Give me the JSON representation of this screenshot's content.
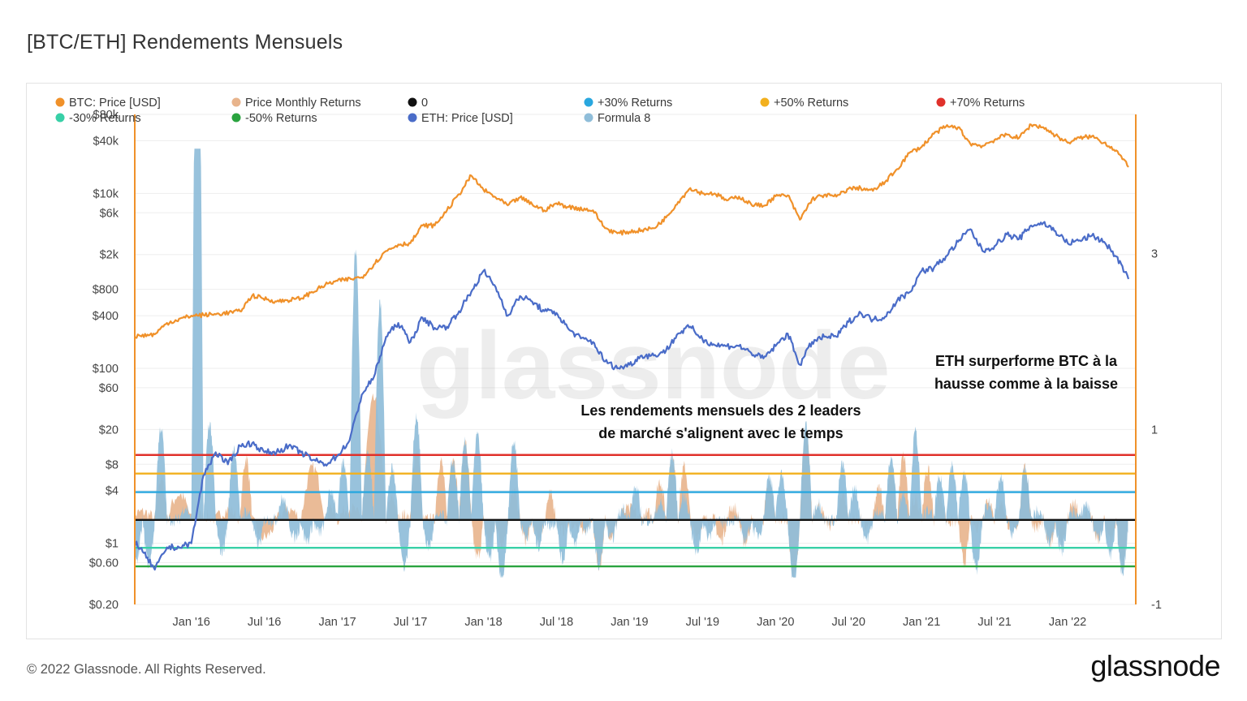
{
  "title": "[BTC/ETH] Rendements Mensuels",
  "footer": {
    "copyright": "© 2022 Glassnode. All Rights Reserved.",
    "logo": "glassnode"
  },
  "watermark": "glassnode",
  "colors": {
    "btc": "#f0912a",
    "eth": "#4a6cc8",
    "returns_btc": "#e8b48c",
    "formula8": "#8fbdd9",
    "zero": "#111111",
    "plus30": "#29a7df",
    "plus50": "#f2b01e",
    "plus70": "#e0312b",
    "minus30": "#38d0a7",
    "minus50": "#2aa33f",
    "frame_line": "#f0912a"
  },
  "chart_data": {
    "type": "line",
    "legend": [
      {
        "label": "BTC: Price [USD]",
        "color": "#f0912a"
      },
      {
        "label": "Price Monthly Returns",
        "color": "#e8b48c"
      },
      {
        "label": "0",
        "color": "#111111"
      },
      {
        "label": "+30% Returns",
        "color": "#29a7df"
      },
      {
        "label": "+50% Returns",
        "color": "#f2b01e"
      },
      {
        "label": "+70% Returns",
        "color": "#e0312b"
      },
      {
        "label": "-30% Returns",
        "color": "#38d0a7"
      },
      {
        "label": "-50% Returns",
        "color": "#2aa33f"
      },
      {
        "label": "ETH: Price [USD]",
        "color": "#4a6cc8"
      },
      {
        "label": "Formula 8",
        "color": "#8fbdd9"
      }
    ],
    "x_ticks": [
      "Jan '16",
      "Jul '16",
      "Jan '17",
      "Jul '17",
      "Jan '18",
      "Jul '18",
      "Jan '19",
      "Jul '19",
      "Jan '20",
      "Jul '20",
      "Jan '21",
      "Jul '21",
      "Jan '22"
    ],
    "x_range": [
      "2015-08",
      "2022-08"
    ],
    "y_left": {
      "scale": "log",
      "range": [
        0.2,
        80000
      ],
      "ticks": [
        {
          "value": 80000,
          "label": "$80k"
        },
        {
          "value": 40000,
          "label": "$40k"
        },
        {
          "value": 10000,
          "label": "$10k"
        },
        {
          "value": 6000,
          "label": "$6k"
        },
        {
          "value": 2000,
          "label": "$2k"
        },
        {
          "value": 800,
          "label": "$800"
        },
        {
          "value": 400,
          "label": "$400"
        },
        {
          "value": 100,
          "label": "$100"
        },
        {
          "value": 60,
          "label": "$60"
        },
        {
          "value": 20,
          "label": "$20"
        },
        {
          "value": 8,
          "label": "$8"
        },
        {
          "value": 4,
          "label": "$4"
        },
        {
          "value": 1,
          "label": "$1"
        },
        {
          "value": 0.6,
          "label": "$0.60"
        },
        {
          "value": 0.2,
          "label": "$0.20"
        }
      ]
    },
    "y_right": {
      "scale": "linear",
      "ticks": [
        {
          "value": 3,
          "label": "3"
        },
        {
          "value": 1,
          "label": "1"
        },
        {
          "value": -1,
          "label": "-1"
        }
      ]
    },
    "threshold_lines": [
      {
        "name": "+70% Returns",
        "value": 0.7
      },
      {
        "name": "+50% Returns",
        "value": 0.5
      },
      {
        "name": "+30% Returns",
        "value": 0.3
      },
      {
        "name": "0",
        "value": 0
      },
      {
        "name": "-30% Returns",
        "value": -0.3
      },
      {
        "name": "-50% Returns",
        "value": -0.5
      }
    ],
    "series": [
      {
        "name": "BTC: Price [USD]",
        "axis": "left",
        "points": [
          [
            "2015-08",
            230
          ],
          [
            "2015-10",
            245
          ],
          [
            "2015-11",
            330
          ],
          [
            "2016-01",
            400
          ],
          [
            "2016-03",
            415
          ],
          [
            "2016-05",
            450
          ],
          [
            "2016-06",
            680
          ],
          [
            "2016-08",
            580
          ],
          [
            "2016-10",
            630
          ],
          [
            "2016-12",
            900
          ],
          [
            "2017-01",
            1000
          ],
          [
            "2017-03",
            1100
          ],
          [
            "2017-05",
            2200
          ],
          [
            "2017-06",
            2600
          ],
          [
            "2017-07",
            2700
          ],
          [
            "2017-08",
            4300
          ],
          [
            "2017-09",
            4300
          ],
          [
            "2017-10",
            6400
          ],
          [
            "2017-11",
            9800
          ],
          [
            "2017-12",
            16000
          ],
          [
            "2018-01",
            11000
          ],
          [
            "2018-02",
            9000
          ],
          [
            "2018-03",
            7300
          ],
          [
            "2018-04",
            9000
          ],
          [
            "2018-05",
            7500
          ],
          [
            "2018-06",
            6400
          ],
          [
            "2018-07",
            7700
          ],
          [
            "2018-08",
            7000
          ],
          [
            "2018-10",
            6400
          ],
          [
            "2018-11",
            4000
          ],
          [
            "2018-12",
            3500
          ],
          [
            "2019-02",
            3800
          ],
          [
            "2019-03",
            4000
          ],
          [
            "2019-04",
            5300
          ],
          [
            "2019-05",
            8000
          ],
          [
            "2019-06",
            11500
          ],
          [
            "2019-07",
            10000
          ],
          [
            "2019-08",
            10000
          ],
          [
            "2019-09",
            8300
          ],
          [
            "2019-10",
            9200
          ],
          [
            "2019-11",
            7500
          ],
          [
            "2019-12",
            7200
          ],
          [
            "2020-01",
            9300
          ],
          [
            "2020-02",
            9500
          ],
          [
            "2020-03",
            5000
          ],
          [
            "2020-04",
            8600
          ],
          [
            "2020-05",
            9600
          ],
          [
            "2020-06",
            9200
          ],
          [
            "2020-07",
            11300
          ],
          [
            "2020-08",
            11500
          ],
          [
            "2020-09",
            10700
          ],
          [
            "2020-10",
            13500
          ],
          [
            "2020-11",
            19000
          ],
          [
            "2020-12",
            29000
          ],
          [
            "2021-01",
            34000
          ],
          [
            "2021-02",
            48000
          ],
          [
            "2021-03",
            58000
          ],
          [
            "2021-04",
            57000
          ],
          [
            "2021-05",
            37000
          ],
          [
            "2021-06",
            35000
          ],
          [
            "2021-07",
            41000
          ],
          [
            "2021-08",
            47000
          ],
          [
            "2021-09",
            43000
          ],
          [
            "2021-10",
            61000
          ],
          [
            "2021-11",
            57000
          ],
          [
            "2021-12",
            46000
          ],
          [
            "2022-01",
            38000
          ],
          [
            "2022-02",
            43000
          ],
          [
            "2022-03",
            45000
          ],
          [
            "2022-04",
            38000
          ],
          [
            "2022-05",
            31000
          ],
          [
            "2022-06",
            20000
          ]
        ]
      },
      {
        "name": "ETH: Price [USD]",
        "axis": "left",
        "points": [
          [
            "2015-08",
            1.2
          ],
          [
            "2015-09",
            0.8
          ],
          [
            "2015-10",
            0.5
          ],
          [
            "2015-11",
            0.9
          ],
          [
            "2015-12",
            0.9
          ],
          [
            "2016-01",
            1.0
          ],
          [
            "2016-02",
            6
          ],
          [
            "2016-03",
            11
          ],
          [
            "2016-04",
            8
          ],
          [
            "2016-05",
            13
          ],
          [
            "2016-06",
            14
          ],
          [
            "2016-07",
            11
          ],
          [
            "2016-08",
            11
          ],
          [
            "2016-09",
            13
          ],
          [
            "2016-10",
            11
          ],
          [
            "2016-11",
            9
          ],
          [
            "2016-12",
            8
          ],
          [
            "2017-01",
            10
          ],
          [
            "2017-02",
            15
          ],
          [
            "2017-03",
            50
          ],
          [
            "2017-04",
            80
          ],
          [
            "2017-05",
            230
          ],
          [
            "2017-06",
            330
          ],
          [
            "2017-07",
            200
          ],
          [
            "2017-08",
            380
          ],
          [
            "2017-09",
            290
          ],
          [
            "2017-10",
            300
          ],
          [
            "2017-11",
            450
          ],
          [
            "2017-12",
            750
          ],
          [
            "2018-01",
            1300
          ],
          [
            "2018-02",
            850
          ],
          [
            "2018-03",
            400
          ],
          [
            "2018-04",
            670
          ],
          [
            "2018-05",
            580
          ],
          [
            "2018-06",
            450
          ],
          [
            "2018-07",
            430
          ],
          [
            "2018-08",
            280
          ],
          [
            "2018-09",
            220
          ],
          [
            "2018-10",
            200
          ],
          [
            "2018-11",
            120
          ],
          [
            "2018-12",
            100
          ],
          [
            "2019-01",
            110
          ],
          [
            "2019-02",
            140
          ],
          [
            "2019-03",
            140
          ],
          [
            "2019-04",
            160
          ],
          [
            "2019-05",
            250
          ],
          [
            "2019-06",
            300
          ],
          [
            "2019-07",
            215
          ],
          [
            "2019-08",
            185
          ],
          [
            "2019-09",
            180
          ],
          [
            "2019-10",
            180
          ],
          [
            "2019-11",
            150
          ],
          [
            "2019-12",
            130
          ],
          [
            "2020-01",
            180
          ],
          [
            "2020-02",
            250
          ],
          [
            "2020-03",
            110
          ],
          [
            "2020-04",
            200
          ],
          [
            "2020-05",
            230
          ],
          [
            "2020-06",
            230
          ],
          [
            "2020-07",
            340
          ],
          [
            "2020-08",
            430
          ],
          [
            "2020-09",
            360
          ],
          [
            "2020-10",
            390
          ],
          [
            "2020-11",
            600
          ],
          [
            "2020-12",
            740
          ],
          [
            "2021-01",
            1300
          ],
          [
            "2021-02",
            1400
          ],
          [
            "2021-03",
            1900
          ],
          [
            "2021-04",
            2800
          ],
          [
            "2021-05",
            3900
          ],
          [
            "2021-06",
            2200
          ],
          [
            "2021-07",
            2500
          ],
          [
            "2021-08",
            3400
          ],
          [
            "2021-09",
            3000
          ],
          [
            "2021-10",
            4300
          ],
          [
            "2021-11",
            4600
          ],
          [
            "2021-12",
            3700
          ],
          [
            "2022-01",
            2700
          ],
          [
            "2022-02",
            2900
          ],
          [
            "2022-03",
            3300
          ],
          [
            "2022-04",
            2800
          ],
          [
            "2022-05",
            1900
          ],
          [
            "2022-06",
            1050
          ]
        ]
      }
    ],
    "returns_series": [
      {
        "name": "Price Monthly Returns",
        "note": "BTC rolling 30-day return, shown as filled area around 0 on right axis"
      },
      {
        "name": "Formula 8",
        "note": "ETH rolling 30-day return, shown as filled area around 0 on right axis"
      }
    ],
    "annotations": [
      {
        "lines": [
          "ETH surperforme BTC à la",
          "hausse comme à la baisse"
        ]
      },
      {
        "lines": [
          "Les rendements mensuels des 2 leaders",
          "de marché s'alignent avec le temps"
        ]
      }
    ],
    "grid": true,
    "legend_position": "top"
  }
}
